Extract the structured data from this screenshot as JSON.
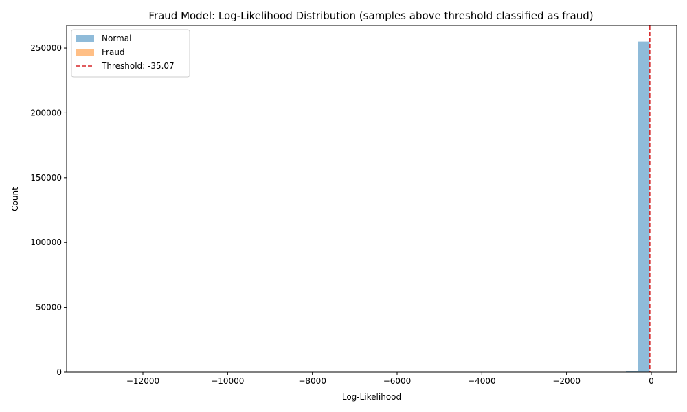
{
  "chart_data": {
    "type": "bar",
    "title": "Fraud Model: Log-Likelihood Distribution (samples above threshold classified as fraud)",
    "xlabel": "Log-Likelihood",
    "ylabel": "Count",
    "xlim": [
      -13800,
      600
    ],
    "ylim": [
      0,
      267500
    ],
    "xticks": [
      -12000,
      -10000,
      -8000,
      -6000,
      -4000,
      -2000,
      0
    ],
    "yticks": [
      0,
      50000,
      100000,
      150000,
      200000,
      250000
    ],
    "grid": false,
    "legend_position": "top-left",
    "threshold": {
      "value": -35.07,
      "label": "Threshold: -35.07",
      "color": "#d62728"
    },
    "series": [
      {
        "name": "Normal",
        "color": "#1f77b4",
        "opacity": 0.5,
        "bins": [
          {
            "x0": -600,
            "x1": -320,
            "count": 1000
          },
          {
            "x0": -320,
            "x1": -40,
            "count": 255000
          }
        ]
      },
      {
        "name": "Fraud",
        "color": "#ff7f0e",
        "opacity": 0.5,
        "bins": []
      }
    ]
  }
}
